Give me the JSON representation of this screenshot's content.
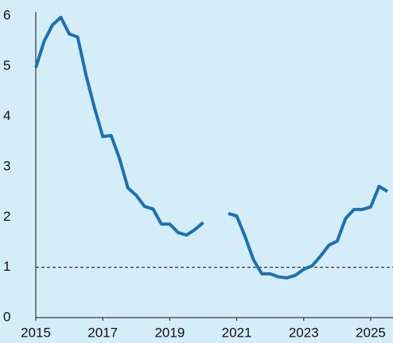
{
  "chart_data": {
    "type": "line",
    "x": [
      2015,
      2015.25,
      2015.5,
      2015.75,
      2016,
      2016.25,
      2016.5,
      2016.75,
      2017,
      2017.25,
      2017.5,
      2017.75,
      2018,
      2018.25,
      2018.5,
      2018.75,
      2019,
      2019.25,
      2019.5,
      2019.75,
      2020,
      2020.25,
      2020.5,
      2020.75,
      2021,
      2021.25,
      2021.5,
      2021.75,
      2022,
      2022.25,
      2022.5,
      2022.75,
      2023,
      2023.25,
      2023.5,
      2023.75,
      2024,
      2024.25,
      2024.5,
      2024.75,
      2025,
      2025.25,
      2025.5
    ],
    "series": [
      {
        "color": "#1a72b5",
        "values": [
          4.97,
          5.5,
          5.82,
          5.97,
          5.64,
          5.58,
          4.82,
          4.18,
          3.6,
          3.62,
          3.16,
          2.58,
          2.43,
          2.21,
          2.16,
          1.86,
          1.86,
          1.69,
          1.64,
          1.75,
          1.89,
          null,
          null,
          2.07,
          2.02,
          1.61,
          1.15,
          0.87,
          0.87,
          0.81,
          0.79,
          0.84,
          0.96,
          1.03,
          1.22,
          1.44,
          1.52,
          1.97,
          2.15,
          2.15,
          2.2,
          2.61,
          2.51
        ]
      }
    ],
    "xlim": [
      2015,
      2025.5
    ],
    "xticks": [
      2015,
      2017,
      2019,
      2021,
      2023,
      2025
    ],
    "ylim": [
      0,
      6
    ],
    "yticks": [
      0,
      1,
      2,
      3,
      4,
      5,
      6
    ],
    "hline": 1
  }
}
